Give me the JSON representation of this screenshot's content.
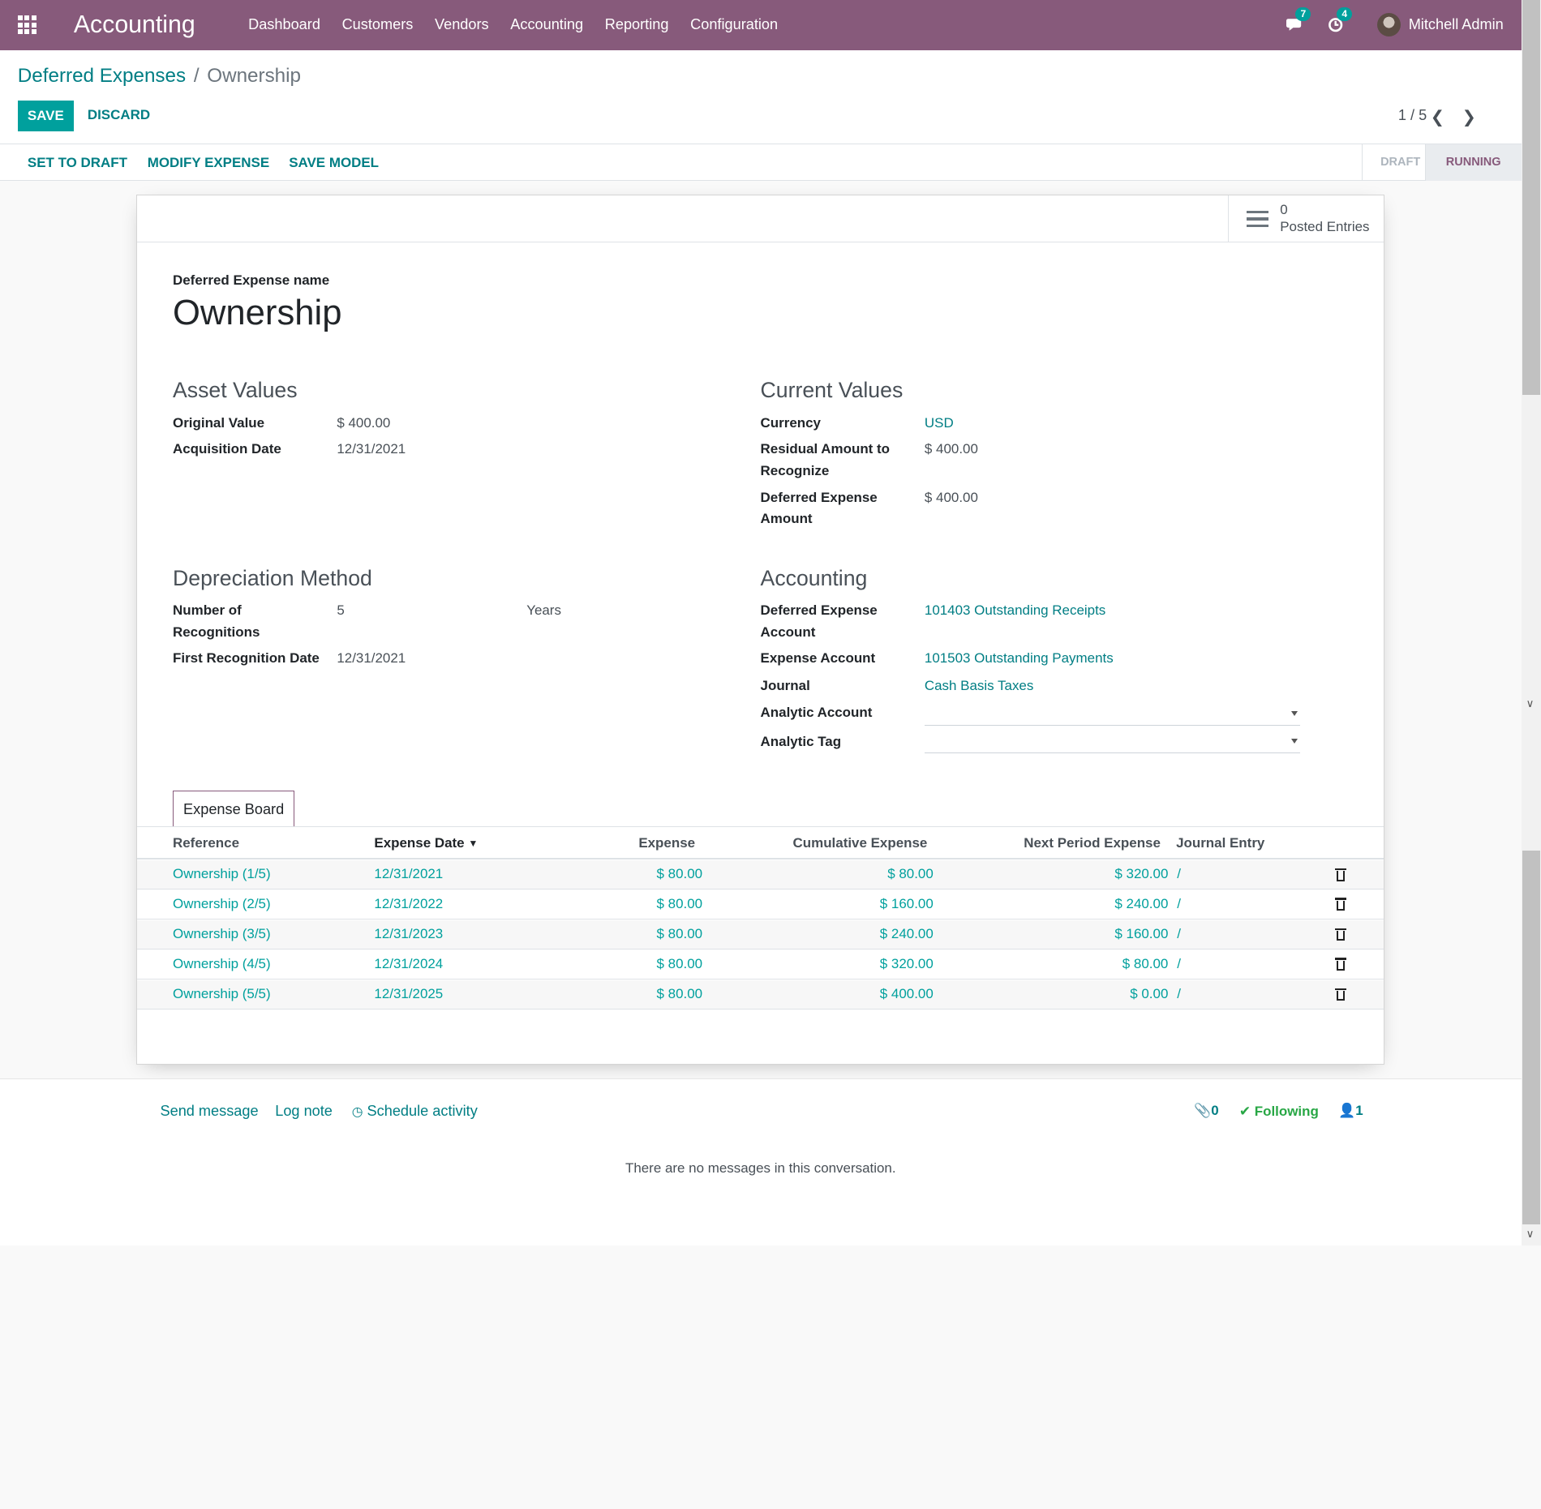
{
  "topbar": {
    "brand": "Accounting",
    "menu": [
      "Dashboard",
      "Customers",
      "Vendors",
      "Accounting",
      "Reporting",
      "Configuration"
    ],
    "messages_count": "7",
    "activities_count": "4",
    "user": "Mitchell Admin"
  },
  "breadcrumb": {
    "parent": "Deferred Expenses",
    "separator": "/",
    "current": "Ownership"
  },
  "buttons": {
    "save": "SAVE",
    "discard": "DISCARD"
  },
  "pager": {
    "value": "1 / 5"
  },
  "statusbar": {
    "actions": [
      "SET TO DRAFT",
      "MODIFY EXPENSE",
      "SAVE MODEL"
    ],
    "stages": [
      "DRAFT",
      "RUNNING"
    ],
    "active_stage": "RUNNING"
  },
  "smart_button": {
    "count": "0",
    "label": "Posted Entries"
  },
  "form": {
    "name_label": "Deferred Expense name",
    "name": "Ownership",
    "asset_values": {
      "heading": "Asset Values",
      "original_value_label": "Original Value",
      "original_value": "$ 400.00",
      "acquisition_date_label": "Acquisition Date",
      "acquisition_date": "12/31/2021"
    },
    "current_values": {
      "heading": "Current Values",
      "currency_label": "Currency",
      "currency": "USD",
      "residual_label_1": "Residual Amount to",
      "residual_label_2": "Recognize",
      "residual": "$ 400.00",
      "amount_label_1": "Deferred Expense",
      "amount_label_2": "Amount",
      "amount": "$ 400.00"
    },
    "depreciation": {
      "heading": "Depreciation Method",
      "number_label_1": "Number of",
      "number_label_2": "Recognitions",
      "number": "5",
      "unit": "Years",
      "first_date_label": "First Recognition Date",
      "first_date": "12/31/2021"
    },
    "accounting": {
      "heading": "Accounting",
      "deferred_account_label_1": "Deferred Expense",
      "deferred_account_label_2": "Account",
      "deferred_account": "101403 Outstanding Receipts",
      "expense_account_label": "Expense Account",
      "expense_account": "101503 Outstanding Payments",
      "journal_label": "Journal",
      "journal": "Cash Basis Taxes",
      "analytic_account_label": "Analytic Account",
      "analytic_tag_label": "Analytic Tag"
    }
  },
  "tab": {
    "label": "Expense Board"
  },
  "table": {
    "columns": [
      "Reference",
      "Expense Date",
      "Expense",
      "Cumulative Expense",
      "Next Period Expense",
      "Journal Entry"
    ],
    "rows": [
      {
        "reference": "Ownership (1/5)",
        "date": "12/31/2021",
        "expense": "$ 80.00",
        "cumulative": "$ 80.00",
        "next": "$ 320.00",
        "journal": "/"
      },
      {
        "reference": "Ownership (2/5)",
        "date": "12/31/2022",
        "expense": "$ 80.00",
        "cumulative": "$ 160.00",
        "next": "$ 240.00",
        "journal": "/"
      },
      {
        "reference": "Ownership (3/5)",
        "date": "12/31/2023",
        "expense": "$ 80.00",
        "cumulative": "$ 240.00",
        "next": "$ 160.00",
        "journal": "/"
      },
      {
        "reference": "Ownership (4/5)",
        "date": "12/31/2024",
        "expense": "$ 80.00",
        "cumulative": "$ 320.00",
        "next": "$ 80.00",
        "journal": "/"
      },
      {
        "reference": "Ownership (5/5)",
        "date": "12/31/2025",
        "expense": "$ 80.00",
        "cumulative": "$ 400.00",
        "next": "$ 0.00",
        "journal": "/"
      }
    ]
  },
  "chatter": {
    "send_message": "Send message",
    "log_note": "Log note",
    "schedule_activity": "Schedule activity",
    "attachments": "0",
    "following": "Following",
    "followers": "1",
    "empty": "There are no messages in this conversation."
  },
  "colors": {
    "brand": "#875a7b",
    "accent": "#00a09d",
    "link": "#017e84"
  }
}
